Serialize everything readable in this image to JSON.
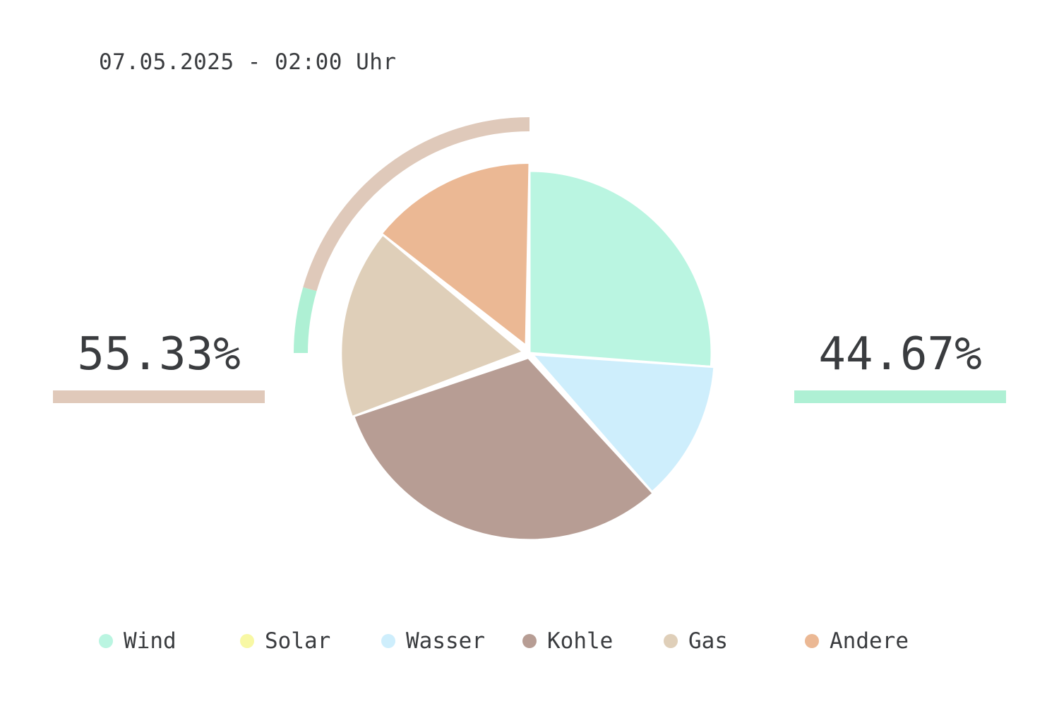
{
  "timestamp": "07.05.2025 - 02:00 Uhr",
  "stats": {
    "left": {
      "value": "55.33%",
      "color": "#e0c9ba"
    },
    "right": {
      "value": "44.67%",
      "color": "#aef0d4"
    }
  },
  "chart_data": {
    "type": "pie",
    "title": "",
    "slices": [
      {
        "label": "Wind",
        "value": 26.2,
        "color": "#baf5e1"
      },
      {
        "label": "Solar",
        "value": 0.0,
        "color": "#f8f8a4"
      },
      {
        "label": "Wasser",
        "value": 12.3,
        "color": "#ceeefc"
      },
      {
        "label": "Kohle",
        "value": 31.0,
        "color": "#b79d94"
      },
      {
        "label": "Gas",
        "value": 16.3,
        "color": "#dfcfb9"
      },
      {
        "label": "Andere",
        "value": 14.2,
        "color": "#ebb894"
      }
    ],
    "outer_ring": [
      {
        "value": 20.5,
        "color": "#dfc9ba"
      },
      {
        "value": 4.5,
        "color": "#aef0d4"
      }
    ],
    "legend": [
      "Wind",
      "Solar",
      "Wasser",
      "Kohle",
      "Gas",
      "Andere"
    ],
    "legend_position": "bottom"
  }
}
